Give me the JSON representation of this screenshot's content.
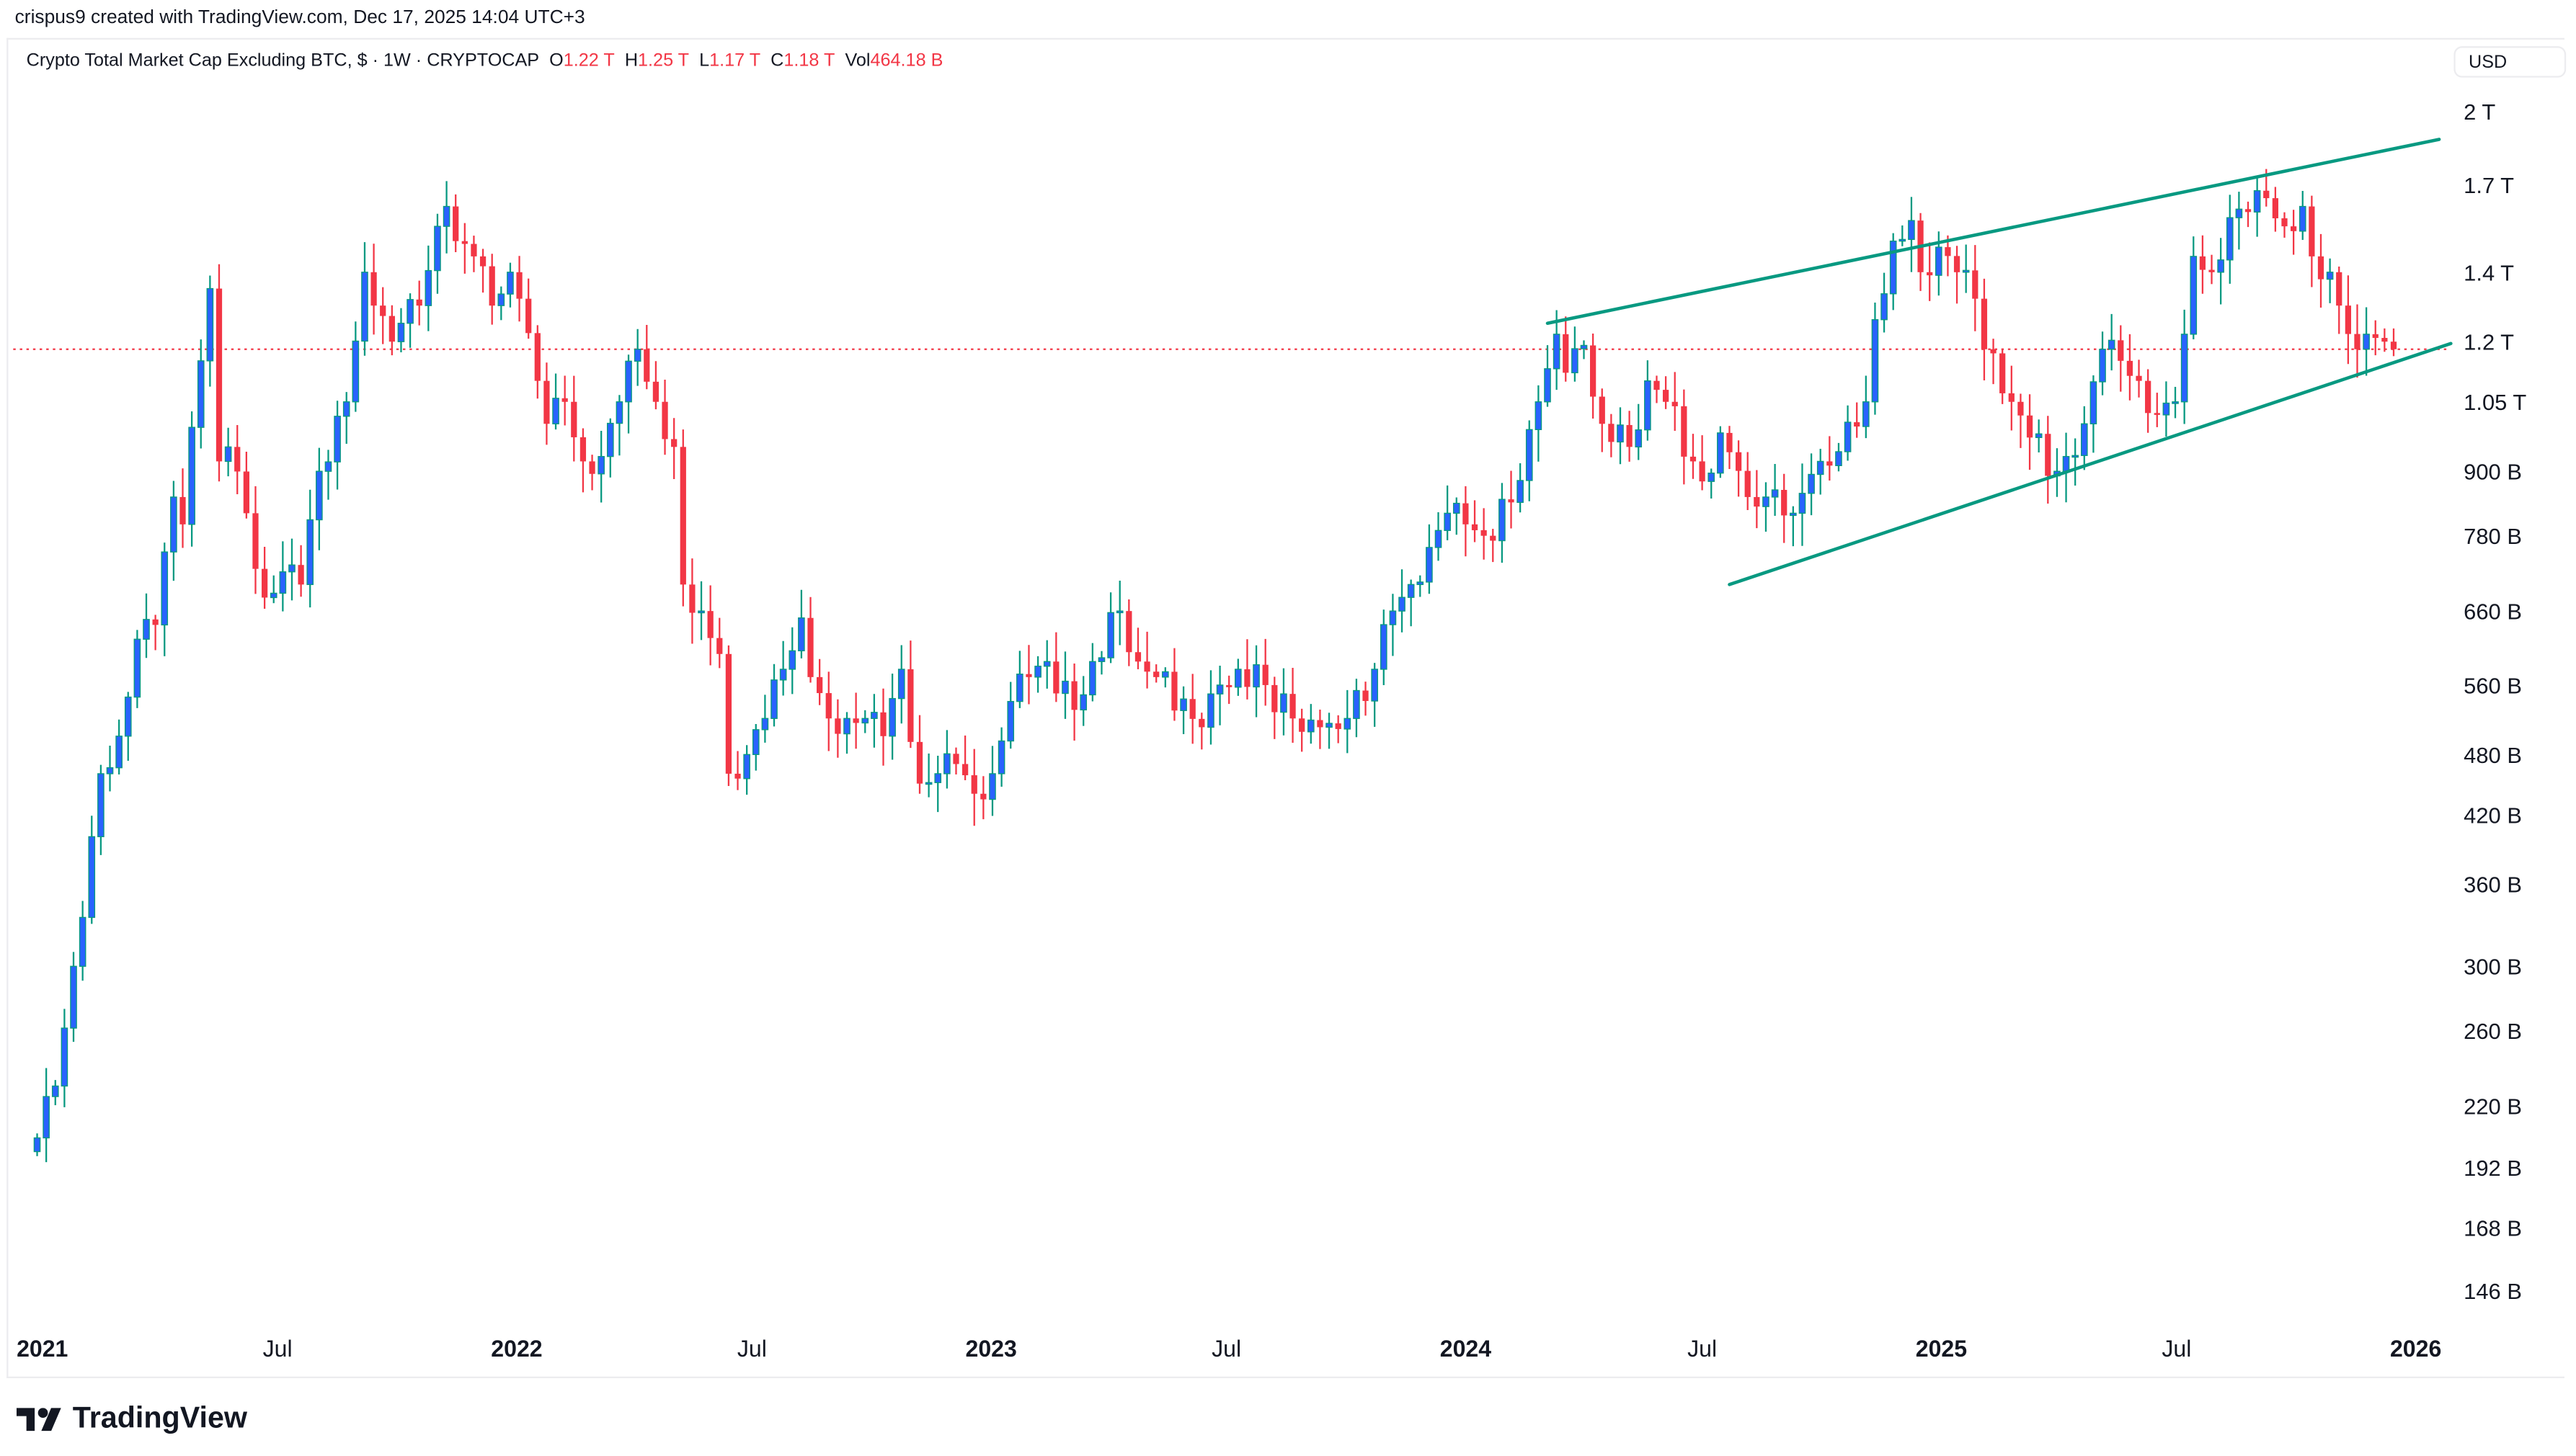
{
  "credit": "crispus9 created with TradingView.com, Dec 17, 2025 14:04 UTC+3",
  "legend": {
    "symbol": "Crypto Total Market Cap Excluding BTC, $ · 1W · CRYPTOCAP",
    "o_label": "O",
    "o": "1.22 T",
    "h_label": "H",
    "h": "1.25 T",
    "l_label": "L",
    "l": "1.17 T",
    "c_label": "C",
    "c": "1.18 T",
    "vol_label": "Vol",
    "vol": "464.18 B"
  },
  "currency": "USD",
  "footer": {
    "logo_text": "TradingView"
  },
  "colors": {
    "up_body": "#2962ff",
    "up_wick": "#089981",
    "down": "#f23645",
    "trendline": "#089981",
    "price_line": "#f23645"
  },
  "chart_data": {
    "type": "candlestick",
    "interval": "1W",
    "y_scale": "log",
    "grid": false,
    "title": "Crypto Total Market Cap Excluding BTC, $ · 1W · CRYPTOCAP",
    "last_price": 1180,
    "value_unit": "B",
    "y_ticks": [
      {
        "label": "2 T",
        "value": 2000
      },
      {
        "label": "1.7 T",
        "value": 1700
      },
      {
        "label": "1.4 T",
        "value": 1400
      },
      {
        "label": "1.2 T",
        "value": 1200
      },
      {
        "label": "1.05 T",
        "value": 1050
      },
      {
        "label": "900 B",
        "value": 900
      },
      {
        "label": "780 B",
        "value": 780
      },
      {
        "label": "660 B",
        "value": 660
      },
      {
        "label": "560 B",
        "value": 560
      },
      {
        "label": "480 B",
        "value": 480
      },
      {
        "label": "420 B",
        "value": 420
      },
      {
        "label": "360 B",
        "value": 360
      },
      {
        "label": "300 B",
        "value": 300
      },
      {
        "label": "260 B",
        "value": 260
      },
      {
        "label": "220 B",
        "value": 220
      },
      {
        "label": "192 B",
        "value": 192
      },
      {
        "label": "168 B",
        "value": 168
      },
      {
        "label": "146 B",
        "value": 146
      }
    ],
    "x_ticks": [
      {
        "label": "2021",
        "date": "2021-01-01",
        "year": true
      },
      {
        "label": "Jul",
        "date": "2021-07-01"
      },
      {
        "label": "2022",
        "date": "2022-01-01",
        "year": true
      },
      {
        "label": "Jul",
        "date": "2022-07-01"
      },
      {
        "label": "2023",
        "date": "2023-01-01",
        "year": true
      },
      {
        "label": "Jul",
        "date": "2023-07-01"
      },
      {
        "label": "2024",
        "date": "2024-01-01",
        "year": true
      },
      {
        "label": "Jul",
        "date": "2024-07-01"
      },
      {
        "label": "2025",
        "date": "2025-01-01",
        "year": true
      },
      {
        "label": "Jul",
        "date": "2025-07-01"
      },
      {
        "label": "2026",
        "date": "2026-01-01",
        "year": true
      }
    ],
    "weekly_close_approx": [
      [
        "2020-12-28",
        205
      ],
      [
        "2021-01-11",
        230
      ],
      [
        "2021-01-25",
        300
      ],
      [
        "2021-02-08",
        400
      ],
      [
        "2021-02-15",
        460
      ],
      [
        "2021-03-01",
        500
      ],
      [
        "2021-03-15",
        620
      ],
      [
        "2021-03-29",
        640
      ],
      [
        "2021-04-12",
        850
      ],
      [
        "2021-04-19",
        800
      ],
      [
        "2021-05-03",
        1150
      ],
      [
        "2021-05-10",
        1350
      ],
      [
        "2021-05-17",
        920
      ],
      [
        "2021-05-24",
        950
      ],
      [
        "2021-06-07",
        820
      ],
      [
        "2021-06-21",
        680
      ],
      [
        "2021-07-05",
        720
      ],
      [
        "2021-07-19",
        700
      ],
      [
        "2021-08-02",
        900
      ],
      [
        "2021-08-23",
        1050
      ],
      [
        "2021-09-06",
        1400
      ],
      [
        "2021-09-13",
        1300
      ],
      [
        "2021-09-27",
        1200
      ],
      [
        "2021-10-04",
        1250
      ],
      [
        "2021-10-18",
        1300
      ],
      [
        "2021-11-01",
        1550
      ],
      [
        "2021-11-08",
        1620
      ],
      [
        "2021-11-15",
        1500
      ],
      [
        "2021-11-29",
        1450
      ],
      [
        "2021-12-13",
        1300
      ],
      [
        "2021-12-27",
        1400
      ],
      [
        "2022-01-03",
        1320
      ],
      [
        "2022-01-17",
        1100
      ],
      [
        "2022-01-24",
        1000
      ],
      [
        "2022-02-07",
        1050
      ],
      [
        "2022-02-21",
        920
      ],
      [
        "2022-03-07",
        930
      ],
      [
        "2022-03-21",
        1050
      ],
      [
        "2022-04-04",
        1180
      ],
      [
        "2022-04-18",
        1050
      ],
      [
        "2022-05-02",
        950
      ],
      [
        "2022-05-09",
        700
      ],
      [
        "2022-05-23",
        660
      ],
      [
        "2022-06-06",
        600
      ],
      [
        "2022-06-13",
        460
      ],
      [
        "2022-06-27",
        480
      ],
      [
        "2022-07-11",
        520
      ],
      [
        "2022-07-25",
        580
      ],
      [
        "2022-08-08",
        650
      ],
      [
        "2022-08-15",
        570
      ],
      [
        "2022-08-29",
        520
      ],
      [
        "2022-09-12",
        520
      ],
      [
        "2022-09-26",
        520
      ],
      [
        "2022-10-10",
        500
      ],
      [
        "2022-10-24",
        580
      ],
      [
        "2022-11-07",
        450
      ],
      [
        "2022-11-21",
        460
      ],
      [
        "2022-12-05",
        470
      ],
      [
        "2022-12-19",
        440
      ],
      [
        "2023-01-02",
        460
      ],
      [
        "2023-01-16",
        540
      ],
      [
        "2023-01-30",
        570
      ],
      [
        "2023-02-13",
        590
      ],
      [
        "2023-03-06",
        530
      ],
      [
        "2023-03-20",
        590
      ],
      [
        "2023-04-10",
        660
      ],
      [
        "2023-04-24",
        590
      ],
      [
        "2023-05-08",
        570
      ],
      [
        "2023-06-12",
        510
      ],
      [
        "2023-06-26",
        560
      ],
      [
        "2023-07-10",
        580
      ],
      [
        "2023-07-31",
        560
      ],
      [
        "2023-08-21",
        520
      ],
      [
        "2023-09-11",
        510
      ],
      [
        "2023-10-02",
        520
      ],
      [
        "2023-10-23",
        580
      ],
      [
        "2023-11-06",
        660
      ],
      [
        "2023-11-20",
        700
      ],
      [
        "2023-12-04",
        760
      ],
      [
        "2023-12-18",
        820
      ],
      [
        "2024-01-01",
        800
      ],
      [
        "2024-01-15",
        780
      ],
      [
        "2024-02-05",
        840
      ],
      [
        "2024-02-26",
        1050
      ],
      [
        "2024-03-11",
        1220
      ],
      [
        "2024-03-18",
        1120
      ],
      [
        "2024-04-01",
        1190
      ],
      [
        "2024-04-15",
        1000
      ],
      [
        "2024-05-06",
        950
      ],
      [
        "2024-05-20",
        1100
      ],
      [
        "2024-06-03",
        1050
      ],
      [
        "2024-06-24",
        920
      ],
      [
        "2024-07-01",
        880
      ],
      [
        "2024-07-15",
        980
      ],
      [
        "2024-08-05",
        850
      ],
      [
        "2024-08-19",
        850
      ],
      [
        "2024-09-09",
        820
      ],
      [
        "2024-09-30",
        920
      ],
      [
        "2024-10-14",
        940
      ],
      [
        "2024-11-04",
        1050
      ],
      [
        "2024-11-11",
        1260
      ],
      [
        "2024-11-25",
        1500
      ],
      [
        "2024-12-09",
        1570
      ],
      [
        "2024-12-16",
        1400
      ],
      [
        "2024-12-30",
        1480
      ],
      [
        "2025-01-13",
        1400
      ],
      [
        "2025-01-27",
        1320
      ],
      [
        "2025-02-03",
        1180
      ],
      [
        "2025-02-24",
        1050
      ],
      [
        "2025-03-10",
        970
      ],
      [
        "2025-03-31",
        900
      ],
      [
        "2025-04-07",
        930
      ],
      [
        "2025-04-21",
        1000
      ],
      [
        "2025-05-05",
        1180
      ],
      [
        "2025-05-19",
        1150
      ],
      [
        "2025-06-02",
        1100
      ],
      [
        "2025-06-16",
        1020
      ],
      [
        "2025-06-30",
        1050
      ],
      [
        "2025-07-07",
        1220
      ],
      [
        "2025-07-14",
        1450
      ],
      [
        "2025-07-28",
        1400
      ],
      [
        "2025-08-11",
        1580
      ],
      [
        "2025-08-25",
        1600
      ],
      [
        "2025-09-08",
        1650
      ],
      [
        "2025-09-22",
        1550
      ],
      [
        "2025-10-06",
        1620
      ],
      [
        "2025-10-13",
        1450
      ],
      [
        "2025-10-27",
        1400
      ],
      [
        "2025-11-03",
        1300
      ],
      [
        "2025-11-17",
        1180
      ],
      [
        "2025-11-24",
        1220
      ],
      [
        "2025-12-01",
        1210
      ],
      [
        "2025-12-08",
        1200
      ],
      [
        "2025-12-15",
        1180
      ]
    ],
    "trendlines": [
      {
        "from": [
          "2024-03-04",
          1250
        ],
        "to": [
          "2026-01-19",
          1880
        ]
      },
      {
        "from": [
          "2024-07-22",
          700
        ],
        "to": [
          "2026-01-28",
          1195
        ]
      }
    ]
  }
}
